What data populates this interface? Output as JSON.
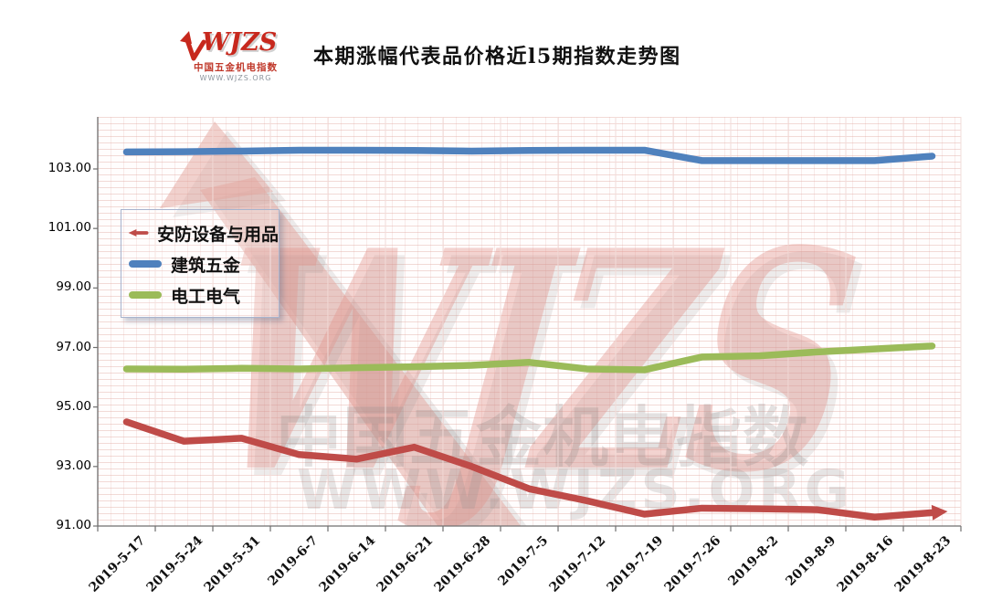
{
  "header": {
    "title": "本期涨幅代表品价格近l5期指数走势图",
    "logo": {
      "brand": "WJZS",
      "subtitle": "中国五金机电指数",
      "url": "WWW.WJZS.ORG",
      "brand_color": "#C7281D"
    }
  },
  "watermark": {
    "brand": "WJZS",
    "line1": "中国五金机电指数",
    "line2": "WWW.WJZS.ORG",
    "arrow_color": "#E9B3AC"
  },
  "chart_data": {
    "type": "line",
    "title": "本期涨幅代表品价格近l5期指数走势图",
    "categories": [
      "2019-5-17",
      "2019-5-24",
      "2019-5-31",
      "2019-6-7",
      "2019-6-14",
      "2019-6-21",
      "2019-6-28",
      "2019-7-5",
      "2019-7-12",
      "2019-7-19",
      "2019-7-26",
      "2019-8-2",
      "2019-8-9",
      "2019-8-16",
      "2019-8-23"
    ],
    "series": [
      {
        "name": "安防设备与用品",
        "color": "#BF4B48",
        "end_marker": "arrow-right",
        "values": [
          94.5,
          93.85,
          93.95,
          93.4,
          93.25,
          93.65,
          93.0,
          92.25,
          91.85,
          91.4,
          91.6,
          91.58,
          91.55,
          91.3,
          91.45
        ]
      },
      {
        "name": "建筑五金",
        "color": "#4F81BD",
        "end_marker": "none",
        "values": [
          103.57,
          103.58,
          103.6,
          103.63,
          103.63,
          103.62,
          103.6,
          103.62,
          103.63,
          103.63,
          103.28,
          103.28,
          103.28,
          103.28,
          103.43
        ]
      },
      {
        "name": "电工电气",
        "color": "#9BBB59",
        "end_marker": "none",
        "values": [
          96.28,
          96.27,
          96.3,
          96.28,
          96.32,
          96.35,
          96.4,
          96.5,
          96.28,
          96.25,
          96.68,
          96.72,
          96.85,
          96.95,
          97.05
        ]
      }
    ],
    "ylim": [
      91,
      104.75
    ],
    "ytick_values": [
      91,
      93,
      95,
      97,
      99,
      101,
      103
    ],
    "ytick_labels": [
      "91.00",
      "93.00",
      "95.00",
      "97.00",
      "99.00",
      "101.00",
      "103.00"
    ],
    "grid": "vertical",
    "legend_position": "upper-left-inside",
    "xlabel": "",
    "ylabel": ""
  }
}
